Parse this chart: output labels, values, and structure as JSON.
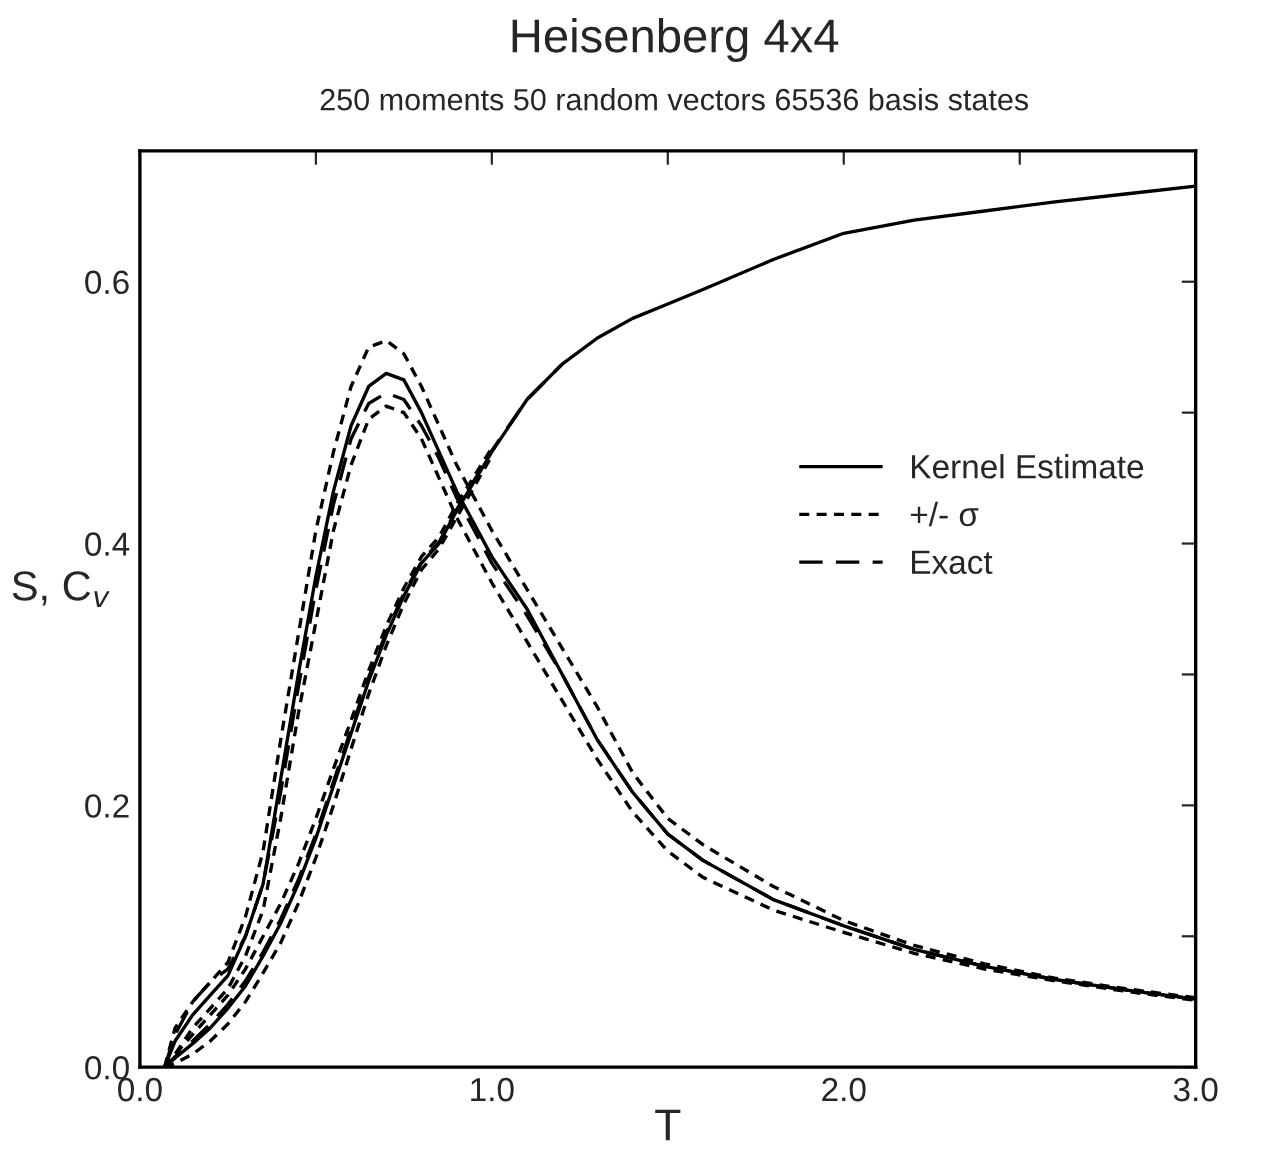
{
  "chart_data": {
    "type": "line",
    "title": "Heisenberg 4x4",
    "subtitle": "250 moments 50 random vectors 65536 basis states",
    "xlabel": "T",
    "ylabel": "S, C$_{v}$",
    "xlim": [
      0,
      3
    ],
    "ylim": [
      0,
      0.7
    ],
    "xticks": [
      {
        "value": 0,
        "label": "0.0"
      },
      {
        "value": 0.5,
        "label": null
      },
      {
        "value": 1,
        "label": "1.0"
      },
      {
        "value": 1.5,
        "label": null
      },
      {
        "value": 2,
        "label": "2.0"
      },
      {
        "value": 2.5,
        "label": null
      },
      {
        "value": 3,
        "label": "3.0"
      }
    ],
    "yticks": [
      {
        "value": 0,
        "label": "0.0"
      },
      {
        "value": 0.1,
        "label": null
      },
      {
        "value": 0.2,
        "label": "0.2"
      },
      {
        "value": 0.3,
        "label": null
      },
      {
        "value": 0.4,
        "label": "0.4"
      },
      {
        "value": 0.5,
        "label": null
      },
      {
        "value": 0.6,
        "label": "0.6"
      }
    ],
    "grid": false,
    "legend": "right",
    "marker": "none",
    "series": [
      {
        "name": "Kernel Estimate",
        "color": "#000000",
        "line_style": "solid",
        "x": [
          0.07,
          0.1,
          0.15,
          0.2,
          0.25,
          0.3,
          0.35,
          0.4,
          0.45,
          0.5,
          0.55,
          0.6,
          0.65,
          0.7,
          0.75,
          0.8,
          0.85,
          0.9,
          1.0,
          1.1,
          1.2,
          1.3,
          1.4,
          1.5,
          1.6,
          1.8,
          2.0,
          2.2,
          2.4,
          2.6,
          2.8,
          3.0
        ],
        "values": [
          0,
          0.02,
          0.04,
          0.055,
          0.07,
          0.1,
          0.14,
          0.22,
          0.3,
          0.375,
          0.44,
          0.49,
          0.52,
          0.53,
          0.525,
          0.5,
          0.47,
          0.44,
          0.39,
          0.35,
          0.3,
          0.25,
          0.21,
          0.178,
          0.158,
          0.128,
          0.108,
          0.09,
          0.077,
          0.067,
          0.059,
          0.052
        ]
      },
      {
        "name": "+/- σ",
        "color": "#000000",
        "line_style": "dotted",
        "x": [
          0.07,
          0.1,
          0.15,
          0.2,
          0.25,
          0.3,
          0.35,
          0.4,
          0.45,
          0.5,
          0.55,
          0.6,
          0.65,
          0.7,
          0.75,
          0.8,
          0.85,
          0.9,
          1.0,
          1.1,
          1.2,
          1.3,
          1.4,
          1.5,
          1.6,
          1.8,
          2.0,
          2.2,
          2.4,
          2.6,
          2.8,
          3.0
        ],
        "values": [
          0,
          0.03,
          0.05,
          0.065,
          0.08,
          0.115,
          0.165,
          0.25,
          0.33,
          0.41,
          0.47,
          0.52,
          0.55,
          0.555,
          0.545,
          0.52,
          0.49,
          0.46,
          0.41,
          0.365,
          0.32,
          0.275,
          0.225,
          0.19,
          0.17,
          0.138,
          0.112,
          0.093,
          0.079,
          0.068,
          0.06,
          0.053
        ]
      },
      {
        "color": "#000000",
        "line_style": "dotted",
        "x": [
          0.07,
          0.1,
          0.15,
          0.2,
          0.25,
          0.3,
          0.35,
          0.4,
          0.45,
          0.5,
          0.55,
          0.6,
          0.65,
          0.7,
          0.75,
          0.8,
          0.85,
          0.9,
          1.0,
          1.1,
          1.2,
          1.3,
          1.4,
          1.5,
          1.6,
          1.8,
          2.0,
          2.2,
          2.4,
          2.6,
          2.8,
          3.0
        ],
        "values": [
          0,
          0.01,
          0.03,
          0.045,
          0.06,
          0.085,
          0.12,
          0.19,
          0.27,
          0.34,
          0.41,
          0.46,
          0.495,
          0.505,
          0.5,
          0.48,
          0.45,
          0.42,
          0.37,
          0.325,
          0.28,
          0.235,
          0.195,
          0.165,
          0.145,
          0.12,
          0.103,
          0.087,
          0.075,
          0.066,
          0.058,
          0.051
        ]
      },
      {
        "name": "Exact",
        "color": "#000000",
        "line_style": "dashed",
        "x": [
          0.07,
          0.1,
          0.15,
          0.2,
          0.25,
          0.3,
          0.35,
          0.4,
          0.45,
          0.5,
          0.55,
          0.6,
          0.65,
          0.7,
          0.75,
          0.8,
          0.85,
          0.9,
          1.0,
          1.1,
          1.2,
          1.3,
          1.4,
          1.5,
          1.6,
          1.8,
          2.0,
          2.2,
          2.4,
          2.6,
          2.8,
          3.0
        ],
        "values": [
          0,
          0.025,
          0.05,
          0.065,
          0.075,
          0.1,
          0.14,
          0.21,
          0.29,
          0.365,
          0.43,
          0.48,
          0.507,
          0.515,
          0.51,
          0.49,
          0.465,
          0.435,
          0.385,
          0.345,
          0.3,
          0.25,
          0.21,
          0.178,
          0.158,
          0.128,
          0.108,
          0.09,
          0.077,
          0.067,
          0.059,
          0.052
        ]
      },
      {
        "color": "#000000",
        "line_style": "solid",
        "x": [
          0.07,
          0.1,
          0.15,
          0.2,
          0.25,
          0.3,
          0.35,
          0.4,
          0.45,
          0.5,
          0.55,
          0.6,
          0.65,
          0.7,
          0.75,
          0.8,
          0.85,
          0.9,
          1.0,
          1.1,
          1.2,
          1.3,
          1.4,
          1.5,
          1.6,
          1.8,
          2.0,
          2.2,
          2.4,
          2.6,
          2.8,
          3.0
        ],
        "values": [
          0,
          0.007,
          0.018,
          0.03,
          0.045,
          0.062,
          0.085,
          0.11,
          0.14,
          0.175,
          0.215,
          0.255,
          0.295,
          0.33,
          0.36,
          0.385,
          0.4,
          0.425,
          0.47,
          0.51,
          0.537,
          0.557,
          0.572,
          0.583,
          0.594,
          0.617,
          0.637,
          0.647,
          0.654,
          0.661,
          0.667,
          0.673
        ]
      },
      {
        "color": "#000000",
        "line_style": "dotted",
        "x": [
          0.07,
          0.1,
          0.15,
          0.2,
          0.25,
          0.3,
          0.35,
          0.4,
          0.45,
          0.5,
          0.55,
          0.6,
          0.65,
          0.7,
          0.75,
          0.8,
          0.85,
          0.9,
          1.0
        ],
        "values": [
          0,
          0.01,
          0.025,
          0.04,
          0.055,
          0.075,
          0.1,
          0.125,
          0.155,
          0.19,
          0.228,
          0.265,
          0.303,
          0.337,
          0.366,
          0.39,
          0.405,
          0.43,
          0.473
        ]
      },
      {
        "color": "#000000",
        "line_style": "dotted",
        "x": [
          0.07,
          0.1,
          0.15,
          0.2,
          0.25,
          0.3,
          0.35,
          0.4,
          0.45,
          0.5,
          0.55,
          0.6,
          0.65,
          0.7,
          0.75,
          0.8,
          0.85,
          0.9,
          1.0
        ],
        "values": [
          0,
          0.003,
          0.01,
          0.02,
          0.033,
          0.05,
          0.072,
          0.095,
          0.125,
          0.16,
          0.2,
          0.243,
          0.285,
          0.322,
          0.354,
          0.38,
          0.396,
          0.42,
          0.467
        ]
      },
      {
        "color": "#000000",
        "line_style": "dashed",
        "x": [
          0.07,
          0.1,
          0.15,
          0.2,
          0.25,
          0.3,
          0.35,
          0.4,
          0.45,
          0.5,
          0.55,
          0.6,
          0.65,
          0.7,
          0.75,
          0.8,
          0.85,
          0.9,
          1.0,
          1.1,
          1.2
        ],
        "values": [
          0,
          0.008,
          0.02,
          0.033,
          0.048,
          0.066,
          0.088,
          0.113,
          0.143,
          0.178,
          0.218,
          0.258,
          0.298,
          0.332,
          0.362,
          0.386,
          0.401,
          0.426,
          0.471,
          0.51,
          0.537
        ]
      }
    ]
  }
}
